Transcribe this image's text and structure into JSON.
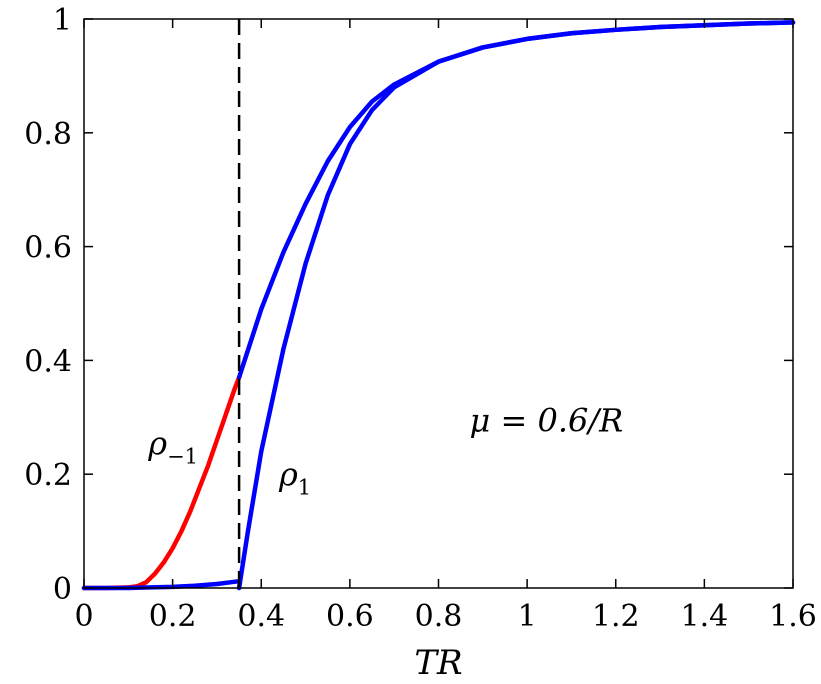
{
  "chart_data": {
    "type": "line",
    "title": "",
    "xlabel": "TR",
    "ylabel": "",
    "xlim": [
      0,
      1.6
    ],
    "ylim": [
      0,
      1
    ],
    "xticks": [
      0,
      0.2,
      0.4,
      0.6,
      0.8,
      1,
      1.2,
      1.4,
      1.6
    ],
    "xtick_labels": [
      "0",
      "0.2",
      "0.4",
      "0.6",
      "0.8",
      "1",
      "1.2",
      "1.4",
      "1.6"
    ],
    "yticks": [
      0,
      0.2,
      0.4,
      0.6,
      0.8,
      1
    ],
    "ytick_labels": [
      "0",
      "0.2",
      "0.4",
      "0.6",
      "0.8",
      "1"
    ],
    "grid": false,
    "vline": {
      "x": 0.35,
      "style": "dashed",
      "color": "#000000"
    },
    "series": [
      {
        "color": "#ff0000",
        "x": [
          0,
          0.05,
          0.1,
          0.12,
          0.14,
          0.16,
          0.18,
          0.2,
          0.22,
          0.24,
          0.26,
          0.28,
          0.3,
          0.32,
          0.34,
          0.35
        ],
        "y": [
          0,
          0,
          0.001,
          0.003,
          0.01,
          0.025,
          0.045,
          0.07,
          0.1,
          0.135,
          0.175,
          0.215,
          0.26,
          0.305,
          0.35,
          0.37
        ]
      },
      {
        "color": "#0000ff",
        "x": [
          0,
          0.05,
          0.1,
          0.15,
          0.2,
          0.25,
          0.3,
          0.33,
          0.35
        ],
        "y": [
          0,
          0,
          0,
          0.001,
          0.002,
          0.004,
          0.007,
          0.01,
          0.012
        ]
      },
      {
        "color": "#0000ff",
        "x": [
          0.35,
          0.4,
          0.45,
          0.5,
          0.55,
          0.6,
          0.65,
          0.7,
          0.8,
          0.9,
          1.0,
          1.1,
          1.2,
          1.3,
          1.4,
          1.5,
          1.6
        ],
        "y": [
          0.37,
          0.49,
          0.59,
          0.675,
          0.75,
          0.81,
          0.855,
          0.885,
          0.925,
          0.95,
          0.965,
          0.975,
          0.981,
          0.986,
          0.989,
          0.992,
          0.994
        ]
      },
      {
        "color": "#0000ff",
        "x": [
          0.35,
          0.37,
          0.4,
          0.45,
          0.5,
          0.55,
          0.6,
          0.65,
          0.7,
          0.8,
          0.9,
          1.0,
          1.1,
          1.2,
          1.3,
          1.4,
          1.5,
          1.6
        ],
        "y": [
          0.0,
          0.1,
          0.24,
          0.42,
          0.57,
          0.69,
          0.78,
          0.84,
          0.88,
          0.925,
          0.95,
          0.965,
          0.975,
          0.981,
          0.986,
          0.989,
          0.992,
          0.994
        ]
      }
    ],
    "annotations": [
      {
        "text": "ρ",
        "sub": "−1",
        "x": 0.145,
        "y": 0.235
      },
      {
        "text": "ρ",
        "sub": "1",
        "x": 0.44,
        "y": 0.18
      },
      {
        "text": "μ = 0.6/R",
        "x": 0.87,
        "y": 0.275
      }
    ]
  }
}
